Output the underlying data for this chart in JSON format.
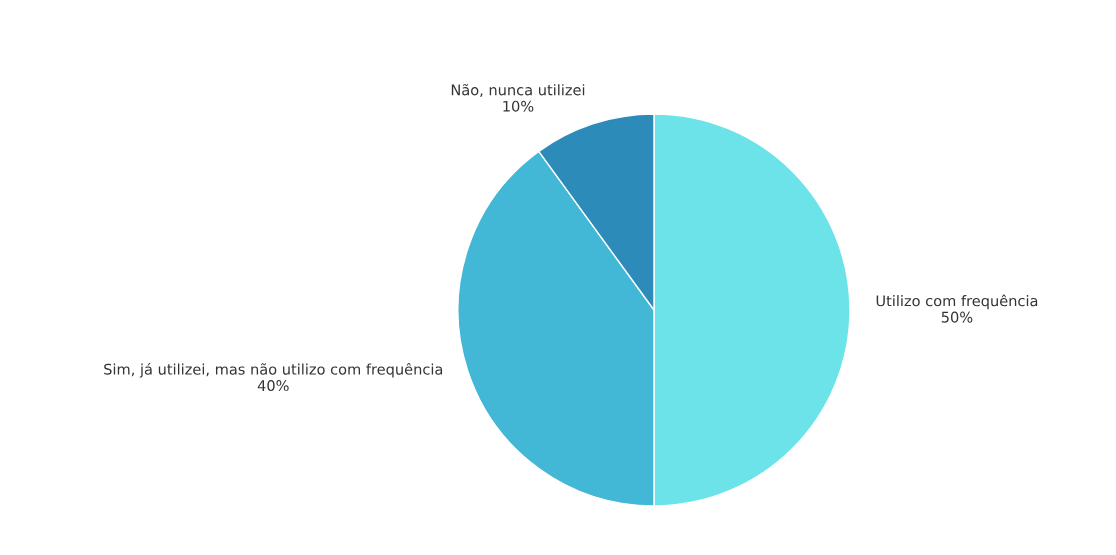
{
  "chart_data": {
    "type": "pie",
    "categories": [
      "Utilizo com frequência",
      "Sim, já utilizei, mas não utilizo com frequência",
      "Não, nunca utilizei"
    ],
    "values": [
      50,
      40,
      10
    ],
    "value_labels": [
      "50%",
      "40%",
      "10%"
    ],
    "colors": [
      "#6be3e8",
      "#42b7d6",
      "#2d8bba"
    ],
    "legend": false
  }
}
